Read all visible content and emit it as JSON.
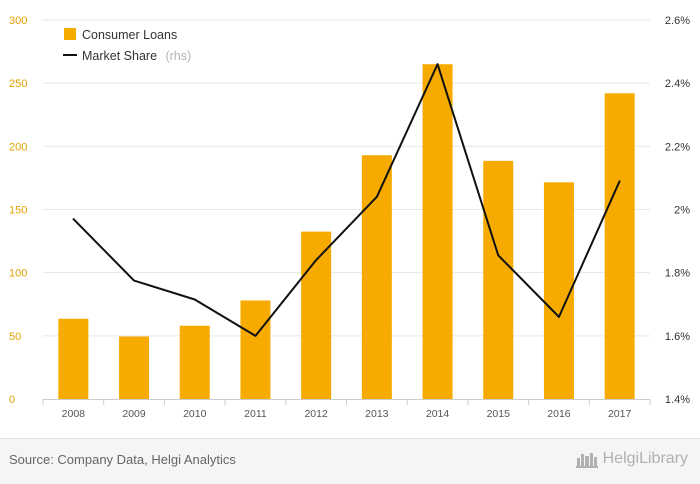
{
  "chart_data": {
    "type": "bar",
    "categories": [
      "2008",
      "2009",
      "2010",
      "2011",
      "2012",
      "2013",
      "2014",
      "2015",
      "2016",
      "2017"
    ],
    "series": [
      {
        "name": "Consumer Loans",
        "type": "bar",
        "axis": "left",
        "color": "#f7ab00",
        "values": [
          63.5,
          49.5,
          58,
          78,
          132.5,
          193,
          265,
          188.5,
          171.5,
          242
        ]
      },
      {
        "name": "Market Share",
        "name_suffix": "(rhs)",
        "type": "line",
        "axis": "right",
        "color": "#111111",
        "values": [
          1.97,
          1.775,
          1.715,
          1.6,
          1.84,
          2.04,
          2.46,
          1.855,
          1.66,
          2.09
        ]
      }
    ],
    "y_left": {
      "ylim": [
        0,
        300
      ],
      "ticks": [
        "0",
        "50",
        "100",
        "150",
        "200",
        "250",
        "300"
      ]
    },
    "y_right": {
      "ylim": [
        1.4,
        2.6
      ],
      "ticks": [
        "1.4%",
        "1.6%",
        "1.8%",
        "2%",
        "2.2%",
        "2.4%",
        "2.6%"
      ]
    },
    "grid": true,
    "legend": "top-left"
  },
  "footer": {
    "source": "Source: Company Data, Helgi Analytics",
    "brand": "HelgiLibrary"
  },
  "icons": {
    "brand": "castle-icon"
  }
}
